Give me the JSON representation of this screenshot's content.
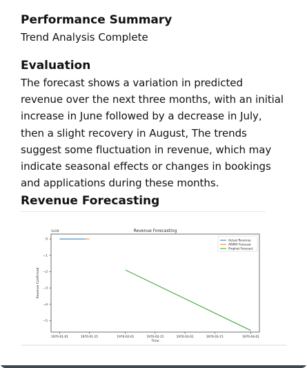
{
  "summary": {
    "title": "Performance Summary",
    "subtitle": "Trend Analysis Complete"
  },
  "evaluation": {
    "title": "Evaluation",
    "text": "The forecast shows a variation in predicted revenue over the next three months, with an initial increase in June followed by a decrease in July, then a slight recovery in August, The trends suggest some fluctuation in revenue, which may indicate seasonal effects or changes in bookings and applications during these months."
  },
  "forecasting": {
    "title": "Revenue Forecasting"
  },
  "chart_data": {
    "type": "line",
    "title": "Revenue Forecasting",
    "xlabel": "Time",
    "ylabel": "Revenue Confirmed",
    "y_multiplier": "1e19",
    "xlim": [
      "1970-01-01",
      "1970-04-01"
    ],
    "ylim": [
      -5.7,
      0.3
    ],
    "x_ticks": [
      "1970-01-01",
      "1970-01-15",
      "1970-02-01",
      "1970-02-15",
      "1970-03-01",
      "1970-03-15",
      "1970-04-01"
    ],
    "y_ticks": [
      0,
      -1,
      -2,
      -3,
      -4,
      -5
    ],
    "y_tick_labels": [
      "0",
      "−1",
      "−2",
      "−3",
      "−4",
      "−5"
    ],
    "legend_position": "top-right",
    "grid": false,
    "series": [
      {
        "name": "Actual Revenue",
        "color": "#1f77b4",
        "points": [
          [
            "1970-01-01",
            0
          ],
          [
            "1970-01-13",
            0
          ]
        ]
      },
      {
        "name": "ARIMA Forecast",
        "color": "#ff7f0e",
        "points": [
          [
            "1970-01-13",
            0
          ],
          [
            "1970-01-15",
            0
          ]
        ]
      },
      {
        "name": "Prophet Forecast",
        "color": "#2ca02c",
        "points": [
          [
            "1970-02-01",
            -1.9
          ],
          [
            "1970-04-01",
            -5.6
          ]
        ]
      }
    ]
  }
}
